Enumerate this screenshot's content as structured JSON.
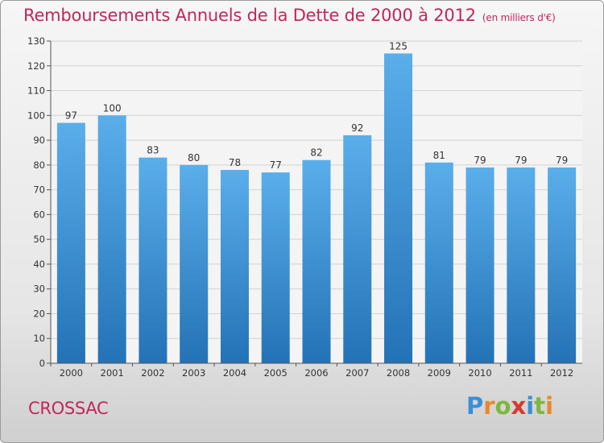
{
  "title": "Remboursements Annuels de la Dette de 2000 à 2012",
  "unit": "(en milliers d'€)",
  "commune": "CROSSAC",
  "logo": {
    "letters": [
      "P",
      "r",
      "o",
      "x",
      "i",
      "t",
      "i"
    ],
    "colors": [
      "#3a8fd6",
      "#e8882a",
      "#7cb83c",
      "#d8382e",
      "#3a8fd6",
      "#7cb83c",
      "#e8882a"
    ]
  },
  "colors": {
    "bar": "#4a9de0",
    "bar_dark": "#2a78bd",
    "text_accent": "#c1275a"
  },
  "chart_data": {
    "type": "bar",
    "categories": [
      "2000",
      "2001",
      "2002",
      "2003",
      "2004",
      "2005",
      "2006",
      "2007",
      "2008",
      "2009",
      "2010",
      "2011",
      "2012"
    ],
    "values": [
      97,
      100,
      83,
      80,
      78,
      77,
      82,
      92,
      125,
      81,
      79,
      79,
      79
    ],
    "ylim": [
      0,
      130
    ],
    "yticks": [
      0,
      10,
      20,
      30,
      40,
      50,
      60,
      70,
      80,
      90,
      100,
      110,
      120,
      130
    ],
    "grid": true
  }
}
